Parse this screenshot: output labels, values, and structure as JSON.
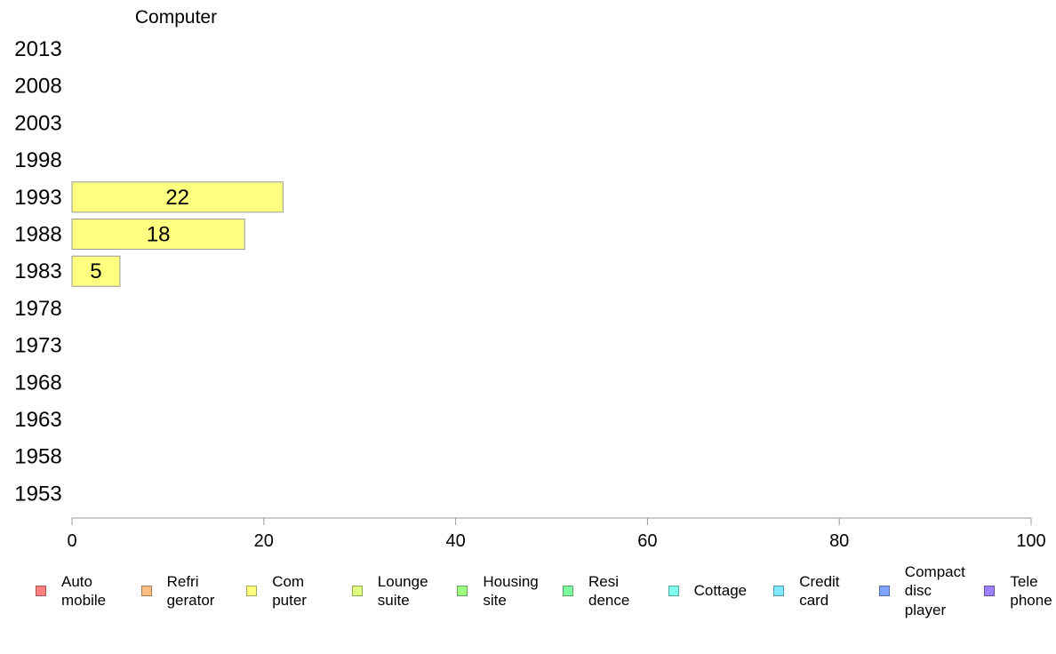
{
  "chart_data": {
    "type": "bar",
    "orientation": "horizontal",
    "title": "Computer",
    "categories": [
      "2013",
      "2008",
      "2003",
      "1998",
      "1993",
      "1988",
      "1983",
      "1978",
      "1973",
      "1968",
      "1963",
      "1958",
      "1953"
    ],
    "series": [
      {
        "name": "Com\nputer",
        "color": "#ffff80",
        "values": [
          null,
          null,
          null,
          null,
          22,
          18,
          5,
          null,
          null,
          null,
          null,
          null,
          null
        ]
      }
    ],
    "xlim": [
      0,
      100
    ],
    "xticks": [
      "0",
      "20",
      "40",
      "60",
      "80",
      "100"
    ],
    "grid": false,
    "legend_position": "bottom"
  },
  "legend": [
    {
      "label": "Auto\nmobile",
      "color": "#ff8080"
    },
    {
      "label": "Refri\ngerator",
      "color": "#ffbf80"
    },
    {
      "label": "Com\nputer",
      "color": "#ffff80"
    },
    {
      "label": "Lounge\nsuite",
      "color": "#dfff80"
    },
    {
      "label": "Housing\nsite",
      "color": "#9fff80"
    },
    {
      "label": "Resi\ndence",
      "color": "#80ffa0"
    },
    {
      "label": "Cottage",
      "color": "#80ffee"
    },
    {
      "label": "Credit\ncard",
      "color": "#80e6ff"
    },
    {
      "label": "Compact\ndisc\nplayer",
      "color": "#80a4ff"
    },
    {
      "label": "Tele\nphone",
      "color": "#9f80ff"
    }
  ]
}
